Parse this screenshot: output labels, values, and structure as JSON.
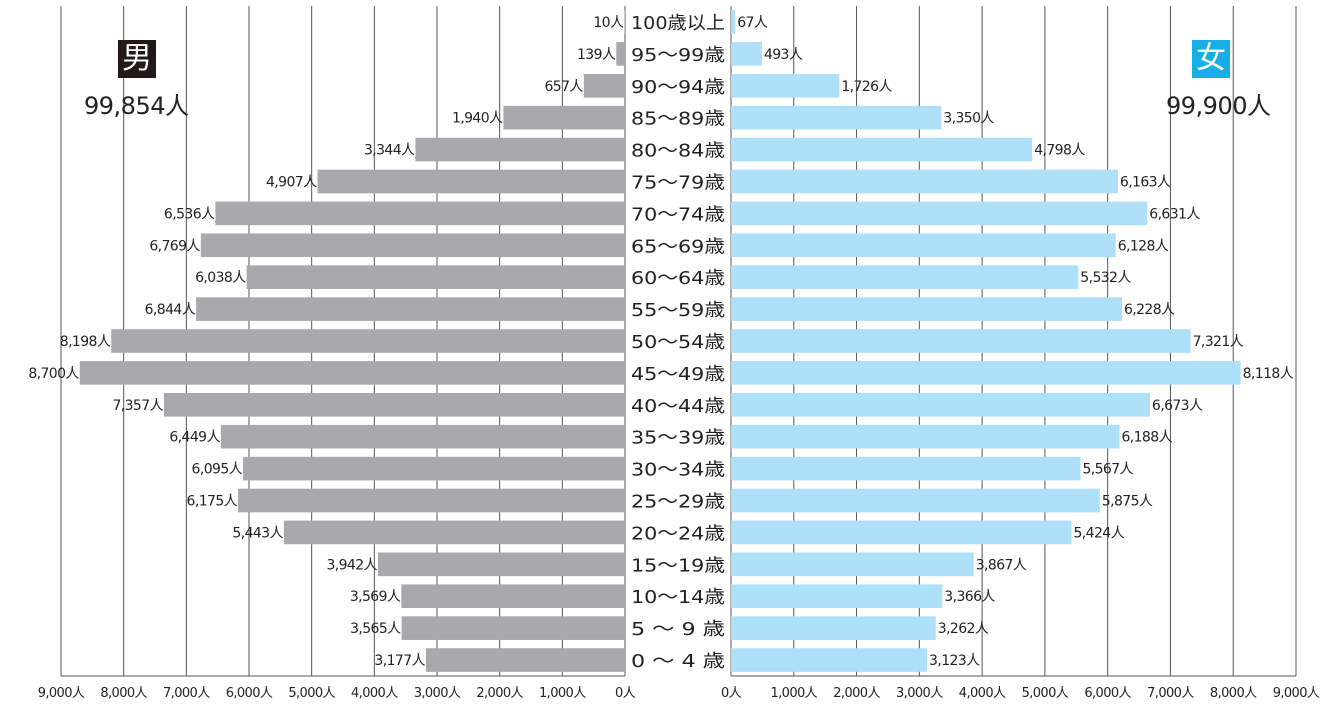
{
  "colors": {
    "male": "#a9a9ad",
    "female": "#aee0fa",
    "male_badge": "#231815",
    "female_badge": "#17aee6",
    "grid": "#555555"
  },
  "legend": {
    "male_label": "男",
    "male_total": "99,854人",
    "female_label": "女",
    "female_total": "99,900人"
  },
  "chart_data": {
    "type": "bar",
    "subtype": "population-pyramid",
    "title": "",
    "xlim": [
      0,
      9000
    ],
    "male_ticks": [
      "9,000人",
      "8,000人",
      "7,000人",
      "6,000人",
      "5,000人",
      "4,000人",
      "3,000人",
      "2,000人",
      "1,000人",
      "0人"
    ],
    "female_ticks": [
      "0人",
      "1,000人",
      "2,000人",
      "3,000人",
      "4,000人",
      "5,000人",
      "6,000人",
      "7,000人",
      "8,000人",
      "9,000人"
    ],
    "categories": [
      "100歳以上",
      "95〜99歳",
      "90〜94歳",
      "85〜89歳",
      "80〜84歳",
      "75〜79歳",
      "70〜74歳",
      "65〜69歳",
      "60〜64歳",
      "55〜59歳",
      "50〜54歳",
      "45〜49歳",
      "40〜44歳",
      "35〜39歳",
      "30〜34歳",
      "25〜29歳",
      "20〜24歳",
      "15〜19歳",
      "10〜14歳",
      "5 〜 9 歳",
      "0 〜 4 歳"
    ],
    "male_values": [
      10,
      139,
      657,
      1940,
      3344,
      4907,
      6536,
      6769,
      6038,
      6844,
      8198,
      8700,
      7357,
      6449,
      6095,
      6175,
      5443,
      3942,
      3569,
      3565,
      3177
    ],
    "female_values": [
      67,
      493,
      1726,
      3350,
      4798,
      6163,
      6631,
      6128,
      5532,
      6228,
      7321,
      8118,
      6673,
      6188,
      5567,
      5875,
      5424,
      3867,
      3366,
      3262,
      3123
    ],
    "male_labels": [
      "10人",
      "139人",
      "657人",
      "1,940人",
      "3,344人",
      "4,907人",
      "6,536人",
      "6,769人",
      "6,038人",
      "6,844人",
      "8,198人",
      "8,700人",
      "7,357人",
      "6,449人",
      "6,095人",
      "6,175人",
      "5,443人",
      "3,942人",
      "3,569人",
      "3,565人",
      "3,177人"
    ],
    "female_labels": [
      "67人",
      "493人",
      "1,726人",
      "3,350人",
      "4,798人",
      "6,163人",
      "6,631人",
      "6,128人",
      "5,532人",
      "6,228人",
      "7,321人",
      "8,118人",
      "6,673人",
      "6,188人",
      "5,567人",
      "5,875人",
      "5,424人",
      "3,867人",
      "3,366人",
      "3,262人",
      "3,123人"
    ],
    "grid": true
  }
}
